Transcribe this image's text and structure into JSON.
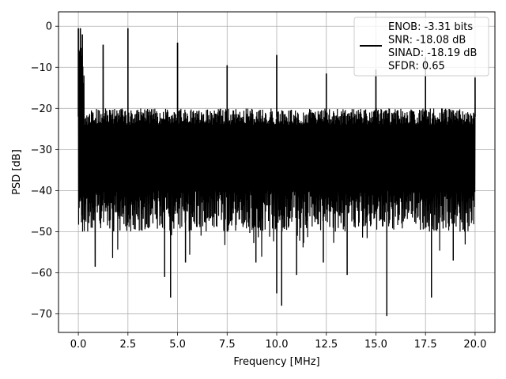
{
  "chart_data": {
    "type": "line",
    "title": "",
    "xlabel": "Frequency [MHz]",
    "ylabel": "PSD [dB]",
    "xlim": [
      -1.0,
      21.0
    ],
    "ylim": [
      -74.5,
      3.5
    ],
    "xticks": [
      0.0,
      2.5,
      5.0,
      7.5,
      10.0,
      12.5,
      15.0,
      17.5,
      20.0
    ],
    "xtick_labels": [
      "0.0",
      "2.5",
      "5.0",
      "7.5",
      "10.0",
      "12.5",
      "15.0",
      "17.5",
      "20.0"
    ],
    "yticks": [
      0,
      -10,
      -20,
      -30,
      -40,
      -50,
      -60,
      -70
    ],
    "ytick_labels": [
      "0",
      "−10",
      "−20",
      "−30",
      "−40",
      "−50",
      "−60",
      "−70"
    ],
    "grid": true,
    "legend_position": "top-right",
    "legend": [
      "ENOB: -3.31 bits",
      "SNR: -18.08 dB",
      "SINAD: -18.19 dB",
      "SFDR: 0.65"
    ],
    "series": [
      {
        "color": "#000000",
        "noise_floor": {
          "x_range": [
            0.0,
            20.0
          ],
          "upper_envelope_db": -20,
          "typical_lower_db": -45,
          "deepest_dips": [
            {
              "x": 0.85,
              "y": -58.5
            },
            {
              "x": 4.35,
              "y": -61
            },
            {
              "x": 4.65,
              "y": -66
            },
            {
              "x": 5.4,
              "y": -57.5
            },
            {
              "x": 8.95,
              "y": -57.5
            },
            {
              "x": 10.0,
              "y": -65
            },
            {
              "x": 10.25,
              "y": -68
            },
            {
              "x": 11.0,
              "y": -60.5
            },
            {
              "x": 12.35,
              "y": -57.5
            },
            {
              "x": 13.55,
              "y": -60.5
            },
            {
              "x": 15.55,
              "y": -70.5
            },
            {
              "x": 17.8,
              "y": -66
            },
            {
              "x": 18.9,
              "y": -57
            }
          ]
        },
        "peaks": [
          {
            "x": 0.0,
            "y": -0.5
          },
          {
            "x": 0.1,
            "y": -0.5
          },
          {
            "x": 0.2,
            "y": -2
          },
          {
            "x": 1.25,
            "y": -4.5
          },
          {
            "x": 2.5,
            "y": -0.5
          },
          {
            "x": 5.0,
            "y": -4
          },
          {
            "x": 7.5,
            "y": -9.5
          },
          {
            "x": 10.0,
            "y": -7
          },
          {
            "x": 12.5,
            "y": -11.5
          },
          {
            "x": 15.0,
            "y": -10.5
          },
          {
            "x": 17.5,
            "y": -7.5
          },
          {
            "x": 20.0,
            "y": -12.5
          }
        ]
      }
    ]
  }
}
